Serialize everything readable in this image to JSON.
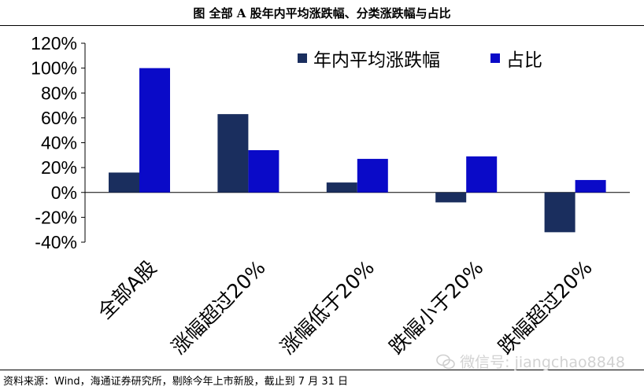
{
  "figure": {
    "title": "图  全部 A 股年内平均涨跌幅、分类涨跌幅与占比",
    "source": "资料来源：Wind，海通证券研究所，剔除今年上市新股，截止到 7 月 31 日",
    "watermark": "微信号: jiangchao8848"
  },
  "colors": {
    "series1": "#1a2e5e",
    "series2": "#0a0ac8"
  },
  "chart_data": {
    "type": "bar",
    "categories": [
      "全部A股",
      "涨幅超过20%",
      "涨幅低于20%",
      "跌幅小于20%",
      "跌幅超过20%"
    ],
    "series": [
      {
        "name": "年内平均涨跌幅",
        "values": [
          16,
          63,
          8,
          -8,
          -32
        ]
      },
      {
        "name": "占比",
        "values": [
          100,
          34,
          27,
          29,
          10
        ]
      }
    ],
    "ylim": [
      -40,
      120
    ],
    "yticks": [
      "-40%",
      "-20%",
      "0%",
      "20%",
      "40%",
      "60%",
      "80%",
      "100%",
      "120%"
    ],
    "ytick_values": [
      -40,
      -20,
      0,
      20,
      40,
      60,
      80,
      100,
      120
    ],
    "legend_position": "top-right",
    "grid": false,
    "xlabel": "",
    "ylabel": ""
  }
}
